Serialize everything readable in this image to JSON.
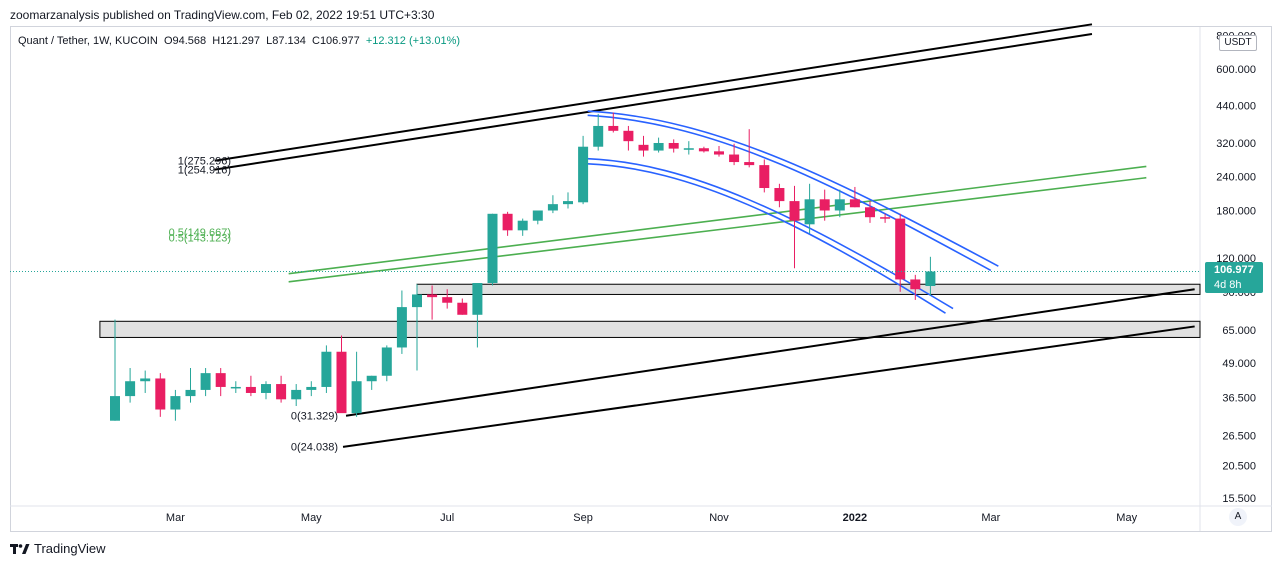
{
  "publisher_line": "zoomarzanalysis published on TradingView.com, Feb 02, 2022 19:51 UTC+3:30",
  "legend": {
    "symbol": "Quant / Tether, 1W, KUCOIN",
    "open": "O94.568",
    "high": "H121.297",
    "low": "L87.134",
    "close": "C106.977",
    "change": "+12.312 (+13.01%)"
  },
  "price_axis": {
    "unit": "USDT"
  },
  "last_price": {
    "price": "106.977",
    "countdown": "4d 8h"
  },
  "auto_scale_label": "A",
  "brand": "TradingView",
  "colors": {
    "up": "#26a69a",
    "down": "#e91e63",
    "channel_blue": "#2962ff",
    "fib_green": "#4caf50",
    "trend_black": "#000000",
    "zone_fill": "#d9d9d9"
  },
  "chart_data": {
    "type": "candlestick",
    "title": "Quant / Tether, 1W, KUCOIN",
    "y_scale": "log",
    "ylim": [
      14.5,
      860
    ],
    "y_ticks": [
      "800.000",
      "600.000",
      "440.000",
      "320.000",
      "240.000",
      "180.000",
      "120.000",
      "90.000",
      "65.000",
      "49.000",
      "36.500",
      "26.500",
      "20.500",
      "15.500"
    ],
    "x_ticks": [
      {
        "label": "Mar",
        "week": 4
      },
      {
        "label": "May",
        "week": 13
      },
      {
        "label": "Jul",
        "week": 22
      },
      {
        "label": "Sep",
        "week": 31
      },
      {
        "label": "Nov",
        "week": 40
      },
      {
        "label": "2022",
        "week": 49
      },
      {
        "label": "Mar",
        "week": 58
      },
      {
        "label": "May",
        "week": 67
      }
    ],
    "x_range": [
      -7,
      75
    ],
    "candles": [
      {
        "o": 30,
        "h": 71,
        "l": 30,
        "c": 37
      },
      {
        "o": 37,
        "h": 47,
        "l": 35,
        "c": 42
      },
      {
        "o": 42,
        "h": 46,
        "l": 38,
        "c": 43
      },
      {
        "o": 43,
        "h": 45,
        "l": 31,
        "c": 33
      },
      {
        "o": 33,
        "h": 39,
        "l": 30,
        "c": 37
      },
      {
        "o": 37,
        "h": 47,
        "l": 35,
        "c": 39
      },
      {
        "o": 39,
        "h": 47,
        "l": 37,
        "c": 45
      },
      {
        "o": 45,
        "h": 47,
        "l": 37,
        "c": 40
      },
      {
        "o": 40,
        "h": 42,
        "l": 38,
        "c": 40
      },
      {
        "o": 40,
        "h": 44,
        "l": 37,
        "c": 38
      },
      {
        "o": 38,
        "h": 42,
        "l": 36,
        "c": 41
      },
      {
        "o": 41,
        "h": 44,
        "l": 35,
        "c": 36
      },
      {
        "o": 36,
        "h": 41,
        "l": 34,
        "c": 39
      },
      {
        "o": 39,
        "h": 42,
        "l": 37,
        "c": 40
      },
      {
        "o": 40,
        "h": 57,
        "l": 38,
        "c": 54
      },
      {
        "o": 54,
        "h": 62,
        "l": 33,
        "c": 32
      },
      {
        "o": 32,
        "h": 54,
        "l": 31,
        "c": 42
      },
      {
        "o": 42,
        "h": 44,
        "l": 39,
        "c": 44
      },
      {
        "o": 44,
        "h": 57,
        "l": 42,
        "c": 56
      },
      {
        "o": 56,
        "h": 91,
        "l": 53,
        "c": 79
      },
      {
        "o": 79,
        "h": 96,
        "l": 46,
        "c": 88
      },
      {
        "o": 88,
        "h": 95,
        "l": 71,
        "c": 86
      },
      {
        "o": 86,
        "h": 92,
        "l": 78,
        "c": 82
      },
      {
        "o": 82,
        "h": 85,
        "l": 74,
        "c": 74
      },
      {
        "o": 74,
        "h": 95,
        "l": 56,
        "c": 97
      },
      {
        "o": 97,
        "h": 175,
        "l": 95,
        "c": 175
      },
      {
        "o": 175,
        "h": 178,
        "l": 145,
        "c": 152
      },
      {
        "o": 152,
        "h": 168,
        "l": 145,
        "c": 165
      },
      {
        "o": 165,
        "h": 178,
        "l": 160,
        "c": 180
      },
      {
        "o": 180,
        "h": 205,
        "l": 176,
        "c": 190
      },
      {
        "o": 190,
        "h": 210,
        "l": 183,
        "c": 195
      },
      {
        "o": 193,
        "h": 340,
        "l": 190,
        "c": 310
      },
      {
        "o": 310,
        "h": 410,
        "l": 300,
        "c": 370
      },
      {
        "o": 370,
        "h": 415,
        "l": 350,
        "c": 355
      },
      {
        "o": 355,
        "h": 370,
        "l": 300,
        "c": 325
      },
      {
        "o": 315,
        "h": 340,
        "l": 285,
        "c": 300
      },
      {
        "o": 300,
        "h": 335,
        "l": 295,
        "c": 320
      },
      {
        "o": 320,
        "h": 330,
        "l": 295,
        "c": 305
      },
      {
        "o": 302,
        "h": 325,
        "l": 290,
        "c": 306
      },
      {
        "o": 306,
        "h": 310,
        "l": 295,
        "c": 298
      },
      {
        "o": 298,
        "h": 312,
        "l": 285,
        "c": 290
      },
      {
        "o": 290,
        "h": 318,
        "l": 265,
        "c": 272
      },
      {
        "o": 272,
        "h": 360,
        "l": 260,
        "c": 265
      },
      {
        "o": 265,
        "h": 278,
        "l": 210,
        "c": 218
      },
      {
        "o": 218,
        "h": 226,
        "l": 185,
        "c": 195
      },
      {
        "o": 195,
        "h": 222,
        "l": 110,
        "c": 165
      },
      {
        "o": 160,
        "h": 226,
        "l": 148,
        "c": 198
      },
      {
        "o": 198,
        "h": 215,
        "l": 165,
        "c": 180
      },
      {
        "o": 180,
        "h": 215,
        "l": 170,
        "c": 198
      },
      {
        "o": 198,
        "h": 220,
        "l": 185,
        "c": 185
      },
      {
        "o": 185,
        "h": 195,
        "l": 162,
        "c": 170
      },
      {
        "o": 170,
        "h": 175,
        "l": 162,
        "c": 168
      },
      {
        "o": 168,
        "h": 175,
        "l": 90,
        "c": 100
      },
      {
        "o": 100,
        "h": 104,
        "l": 84,
        "c": 92
      },
      {
        "o": 94.568,
        "h": 121.297,
        "l": 87.134,
        "c": 106.977
      }
    ],
    "annotations": [
      {
        "text": "1(275.296)",
        "week": 2,
        "price": 275.296
      },
      {
        "text": "1(254.916)",
        "week": 2,
        "price": 254.916
      },
      {
        "text": "0.5(143.123)",
        "week": 2,
        "price": 143.123
      },
      {
        "text": "0.5(149.667)",
        "week": 2,
        "price": 149.667
      },
      {
        "text": "0(31.329)",
        "week": 11,
        "price": 31.329
      },
      {
        "text": "0(24.038)",
        "week": 11,
        "price": 24.038
      }
    ],
    "zones": [
      {
        "from_week": 20,
        "to_week": 75,
        "top": 96,
        "bottom": 88
      },
      {
        "from_week": -1,
        "to_week": 75,
        "top": 70,
        "bottom": 61
      }
    ]
  }
}
